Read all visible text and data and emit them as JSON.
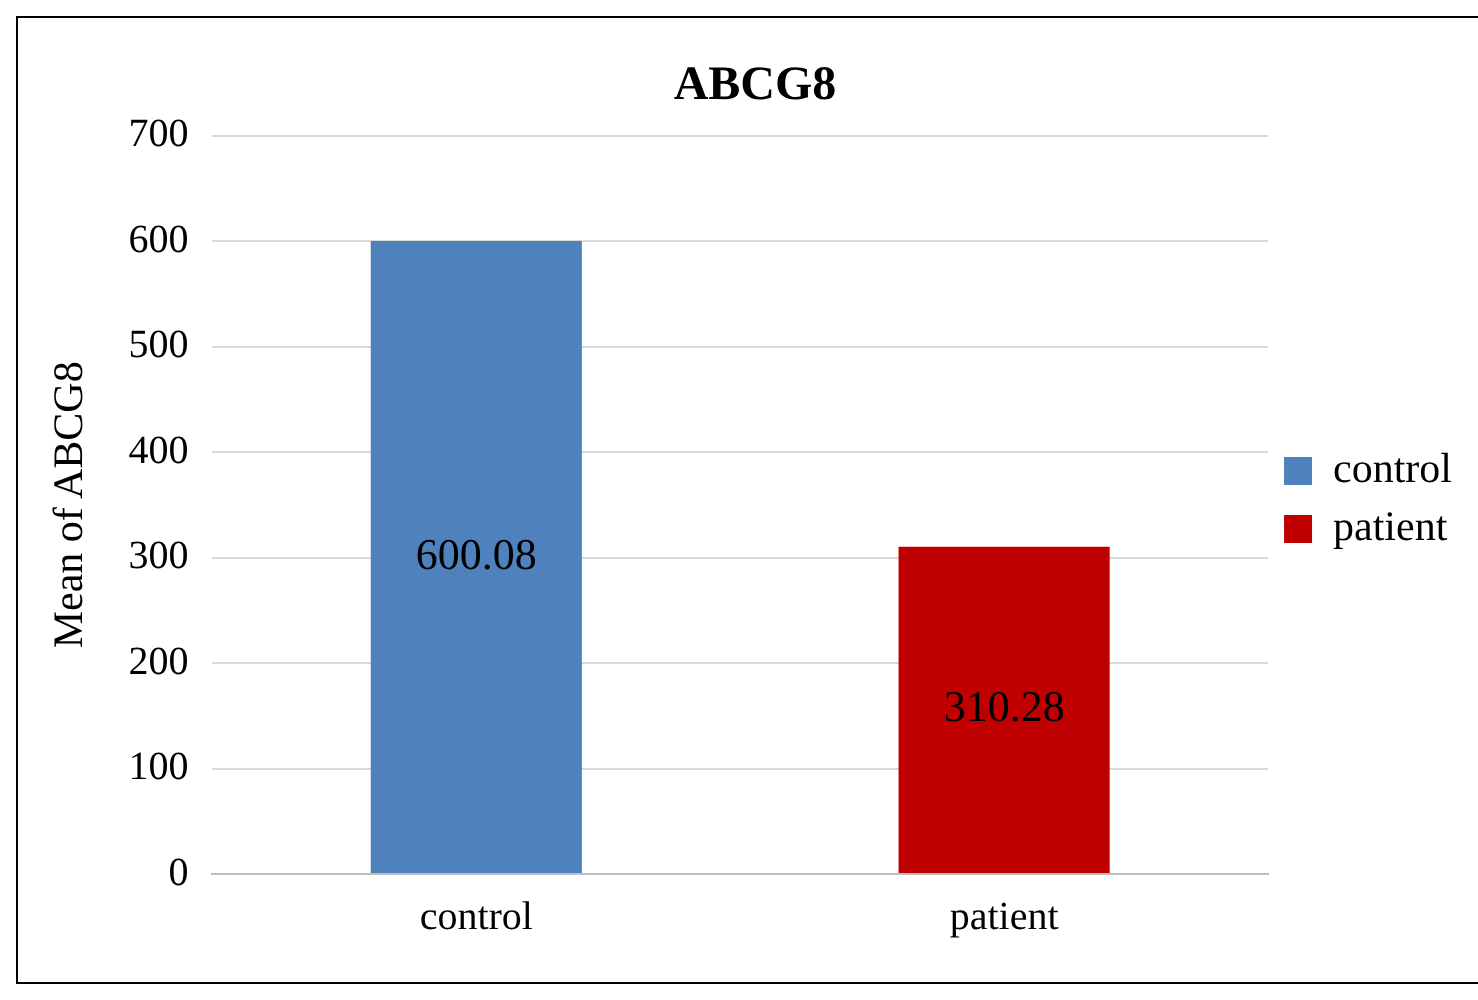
{
  "chart_data": {
    "type": "bar",
    "title": "ABCG8",
    "ylabel": "Mean of ABCG8",
    "categories": [
      "control",
      "patient"
    ],
    "series": [
      {
        "name": "control",
        "color": "#4f81bd",
        "values": [
          600.08,
          null
        ]
      },
      {
        "name": "patient",
        "color": "#c00000",
        "values": [
          null,
          310.28
        ]
      }
    ],
    "ylim": [
      0,
      700
    ],
    "yticks": [
      0,
      100,
      200,
      300,
      400,
      500,
      600,
      700
    ],
    "grid": "y",
    "legend": "right",
    "data_labels": true
  }
}
